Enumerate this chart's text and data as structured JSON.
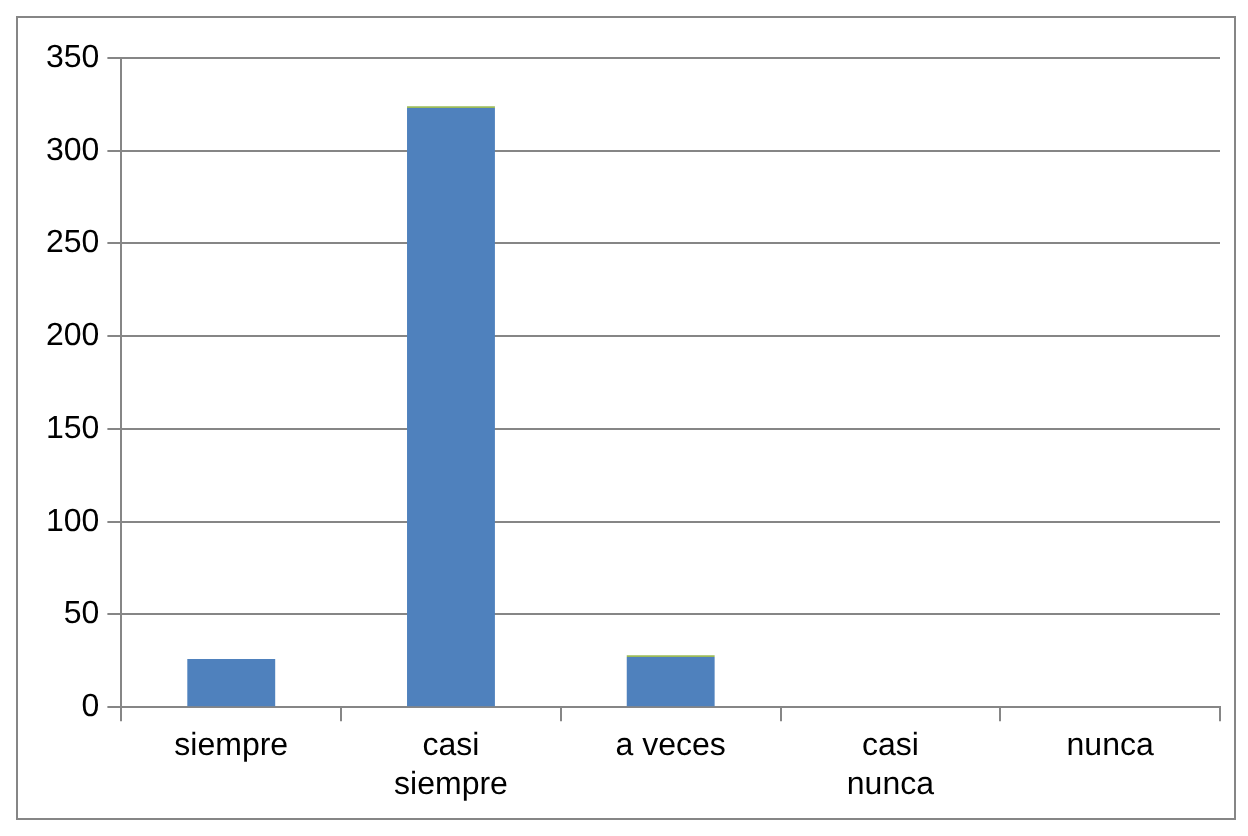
{
  "chart_data": {
    "type": "bar",
    "stacked": true,
    "categories": [
      "siempre",
      "casi siempre",
      "a veces",
      "casi nunca",
      "nunca"
    ],
    "series": [
      {
        "color": "#4f81bd",
        "values": [
          26,
          323,
          27,
          0,
          0
        ]
      },
      {
        "color": "#9bbb59",
        "values": [
          0,
          1,
          1,
          0,
          0
        ]
      }
    ],
    "ylim": [
      0,
      350
    ],
    "yticks": [
      0,
      50,
      100,
      150,
      200,
      250,
      300,
      350
    ],
    "grid": "y",
    "legend": false
  }
}
